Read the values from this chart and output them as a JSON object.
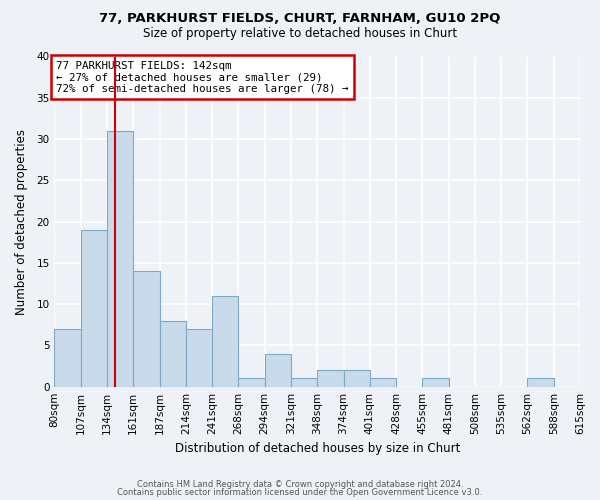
{
  "title": "77, PARKHURST FIELDS, CHURT, FARNHAM, GU10 2PQ",
  "subtitle": "Size of property relative to detached houses in Churt",
  "xlabel": "Distribution of detached houses by size in Churt",
  "ylabel": "Number of detached properties",
  "bar_color": "#c9daea",
  "bar_edge_color": "#7aaac8",
  "bin_edges": [
    80,
    107,
    134,
    161,
    188,
    215,
    242,
    269,
    296,
    323,
    350,
    377,
    404,
    431,
    458,
    485,
    512,
    539,
    566,
    593,
    620
  ],
  "bin_labels": [
    "80sqm",
    "107sqm",
    "134sqm",
    "161sqm",
    "187sqm",
    "214sqm",
    "241sqm",
    "268sqm",
    "294sqm",
    "321sqm",
    "348sqm",
    "374sqm",
    "401sqm",
    "428sqm",
    "455sqm",
    "481sqm",
    "508sqm",
    "535sqm",
    "562sqm",
    "588sqm",
    "615sqm"
  ],
  "counts": [
    7,
    19,
    31,
    14,
    8,
    7,
    11,
    1,
    4,
    1,
    2,
    2,
    1,
    0,
    1,
    0,
    0,
    0,
    1,
    0
  ],
  "vline_x": 142,
  "annotation_text": "77 PARKHURST FIELDS: 142sqm\n← 27% of detached houses are smaller (29)\n72% of semi-detached houses are larger (78) →",
  "annotation_box_color": "#ffffff",
  "annotation_border_color": "#cc0000",
  "vline_color": "#cc0000",
  "ylim": [
    0,
    40
  ],
  "yticks": [
    0,
    5,
    10,
    15,
    20,
    25,
    30,
    35,
    40
  ],
  "footer1": "Contains HM Land Registry data © Crown copyright and database right 2024.",
  "footer2": "Contains public sector information licensed under the Open Government Licence v3.0.",
  "background_color": "#eef2f7",
  "grid_color": "#ffffff"
}
